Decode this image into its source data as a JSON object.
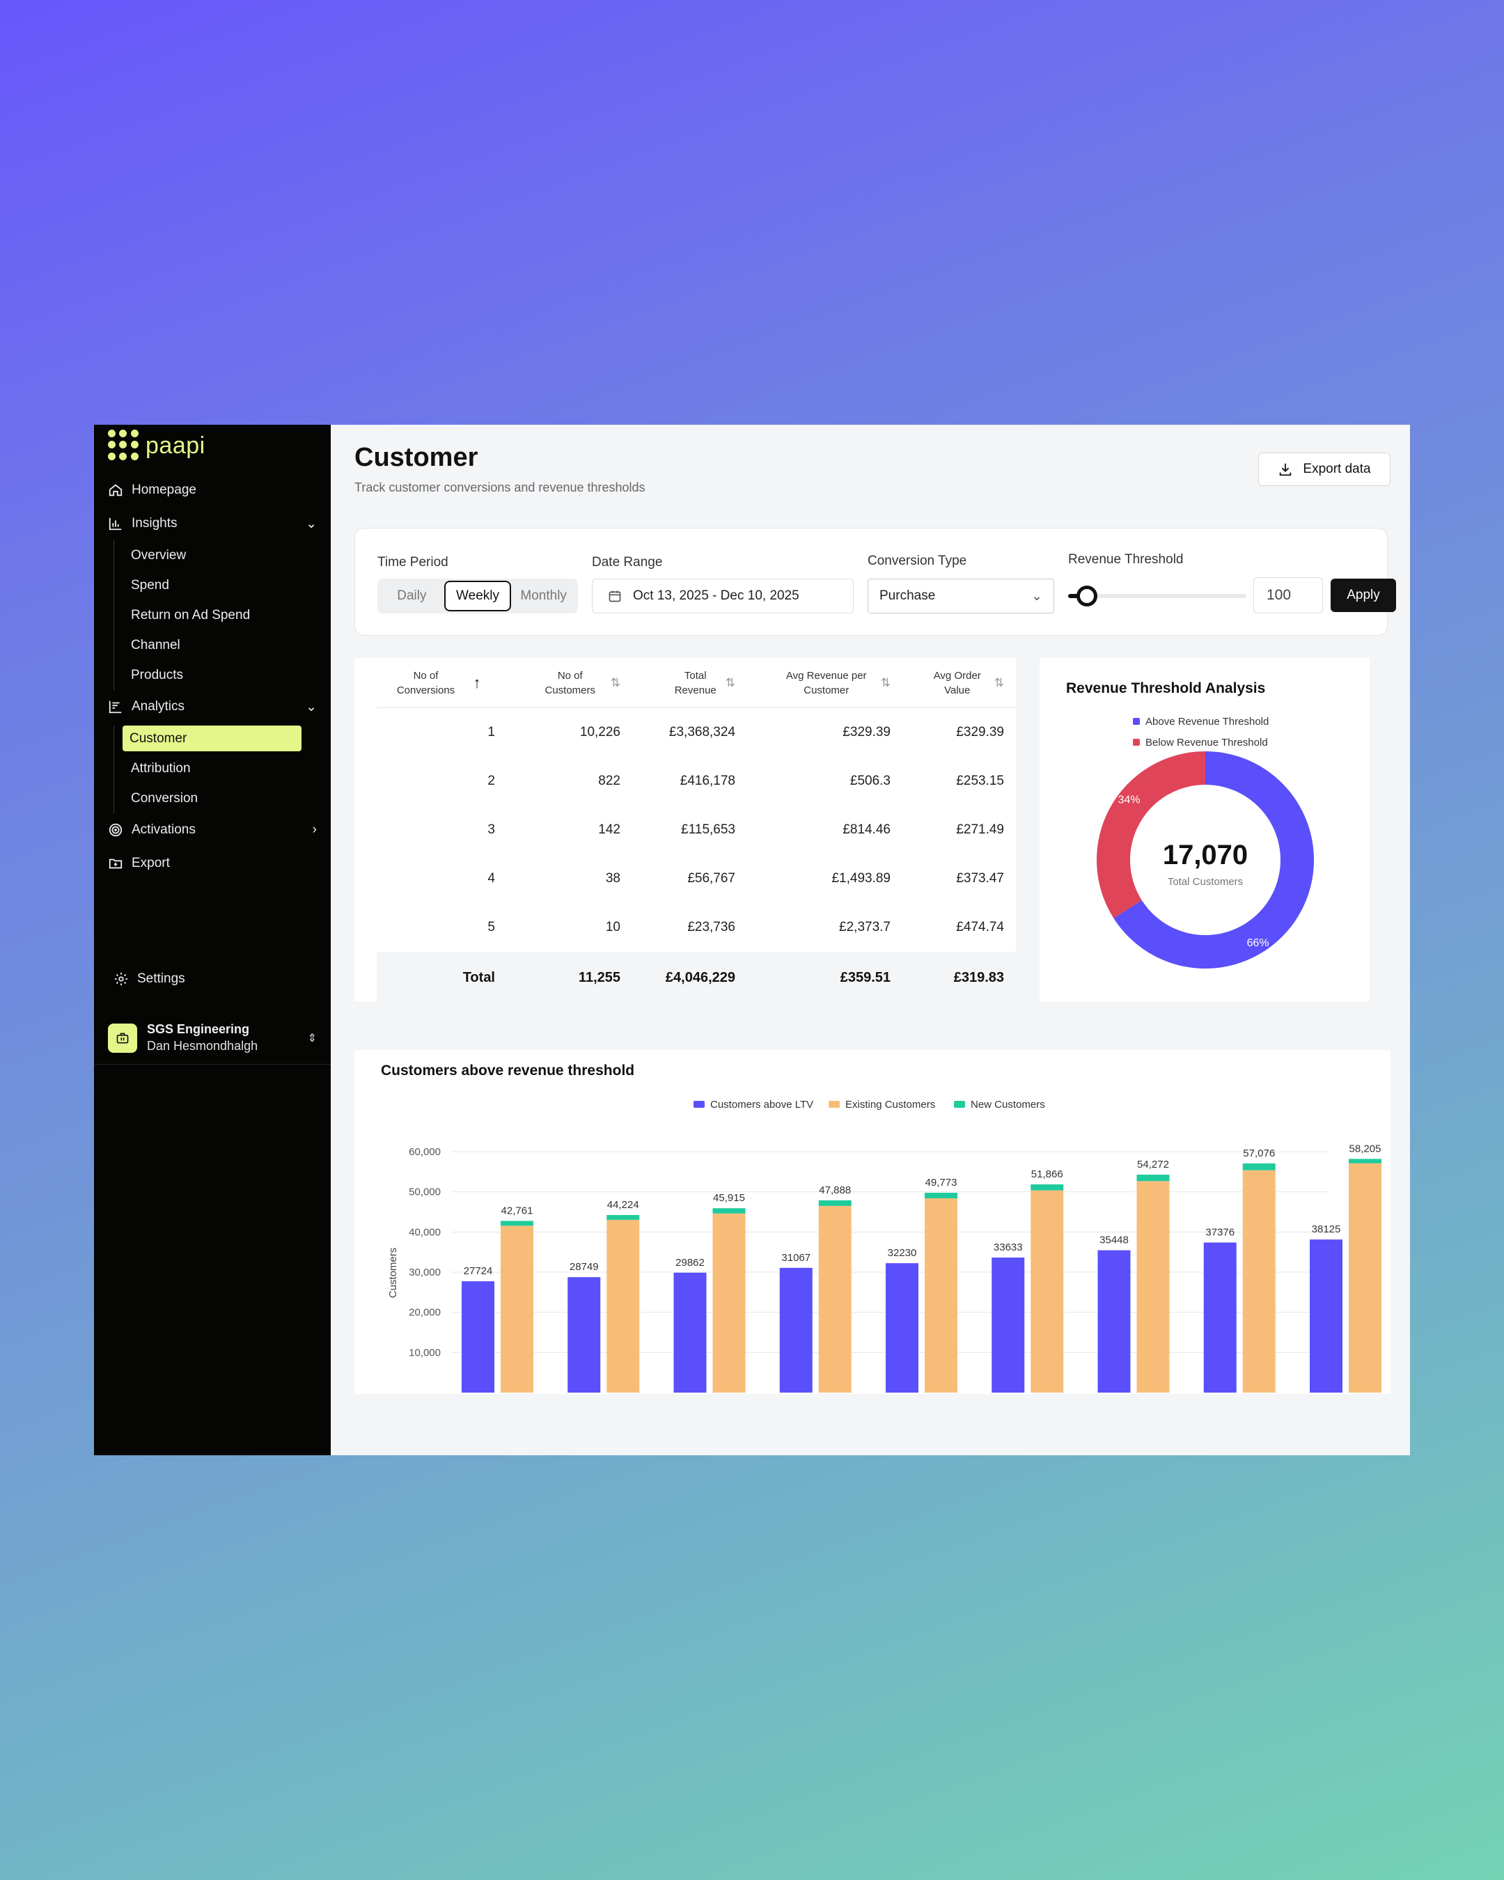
{
  "app": {
    "logo": "paapi"
  },
  "sidebar": {
    "homepage": "Homepage",
    "insights": "Insights",
    "insights_items": [
      "Overview",
      "Spend",
      "Return on Ad Spend",
      "Channel",
      "Products"
    ],
    "analytics": "Analytics",
    "analytics_items": [
      "Customer",
      "Attribution",
      "Conversion"
    ],
    "activations": "Activations",
    "export": "Export",
    "settings": "Settings",
    "org_name": "SGS Engineering",
    "user_name": "Dan Hesmondhalgh"
  },
  "header": {
    "title": "Customer",
    "subtitle": "Track customer conversions and revenue thresholds",
    "export_label": "Export data"
  },
  "filters": {
    "time_period_label": "Time Period",
    "time_options": [
      "Daily",
      "Weekly",
      "Monthly"
    ],
    "time_selected": "Weekly",
    "date_range_label": "Date Range",
    "date_range_value": "Oct 13, 2025 - Dec 10, 2025",
    "conversion_type_label": "Conversion Type",
    "conversion_type_value": "Purchase",
    "revenue_threshold_label": "Revenue Threshold",
    "revenue_threshold_value": "100",
    "apply_label": "Apply"
  },
  "table": {
    "headers": [
      "No of Conversions",
      "No of Customers",
      "Total Revenue",
      "Avg Revenue per Customer",
      "Avg Order Value"
    ],
    "rows": [
      [
        "1",
        "10,226",
        "£3,368,324",
        "£329.39",
        "£329.39"
      ],
      [
        "2",
        "822",
        "£416,178",
        "£506.3",
        "£253.15"
      ],
      [
        "3",
        "142",
        "£115,653",
        "£814.46",
        "£271.49"
      ],
      [
        "4",
        "38",
        "£56,767",
        "£1,493.89",
        "£373.47"
      ],
      [
        "5",
        "10",
        "£23,736",
        "£2,373.7",
        "£474.74"
      ]
    ],
    "total": [
      "Total",
      "11,255",
      "£4,046,229",
      "£359.51",
      "£319.83"
    ]
  },
  "donut": {
    "title": "Revenue Threshold Analysis",
    "legend": [
      "Above Revenue Threshold",
      "Below Revenue Threshold"
    ],
    "total": "17,070",
    "total_label": "Total Customers",
    "above_pct": "66%",
    "below_pct": "34%",
    "above_fraction": 0.66,
    "colors": {
      "above": "#5a4ffb",
      "below": "#e04458"
    }
  },
  "chart_data": {
    "type": "bar",
    "title": "Customers above revenue threshold",
    "ylabel": "Customers",
    "ylim": [
      0,
      60000
    ],
    "yticks": [
      "10,000",
      "20,000",
      "30,000",
      "40,000",
      "50,000",
      "60,000"
    ],
    "ytick_values": [
      10000,
      20000,
      30000,
      40000,
      50000,
      60000
    ],
    "legend": [
      "Customers above LTV",
      "Existing Customers",
      "New Customers"
    ],
    "colors": {
      "ltv": "#5a4ffb",
      "existing": "#f7bd78",
      "new": "#1fcb9c"
    },
    "ltv": [
      27724,
      28749,
      29862,
      31067,
      32230,
      33633,
      35448,
      37376,
      38125
    ],
    "ltv_labels": [
      "27724",
      "28749",
      "29862",
      "31067",
      "32230",
      "33633",
      "35448",
      "37376",
      "38125"
    ],
    "stack_totals": [
      42761,
      44224,
      45915,
      47888,
      49773,
      51866,
      54272,
      57076,
      58205
    ],
    "stack_labels": [
      "42,761",
      "44,224",
      "45,915",
      "47,888",
      "49,773",
      "51,866",
      "54,272",
      "57,076",
      "58,205"
    ],
    "new_customers": [
      1200,
      1200,
      1300,
      1400,
      1400,
      1500,
      1600,
      1700,
      1100
    ]
  }
}
